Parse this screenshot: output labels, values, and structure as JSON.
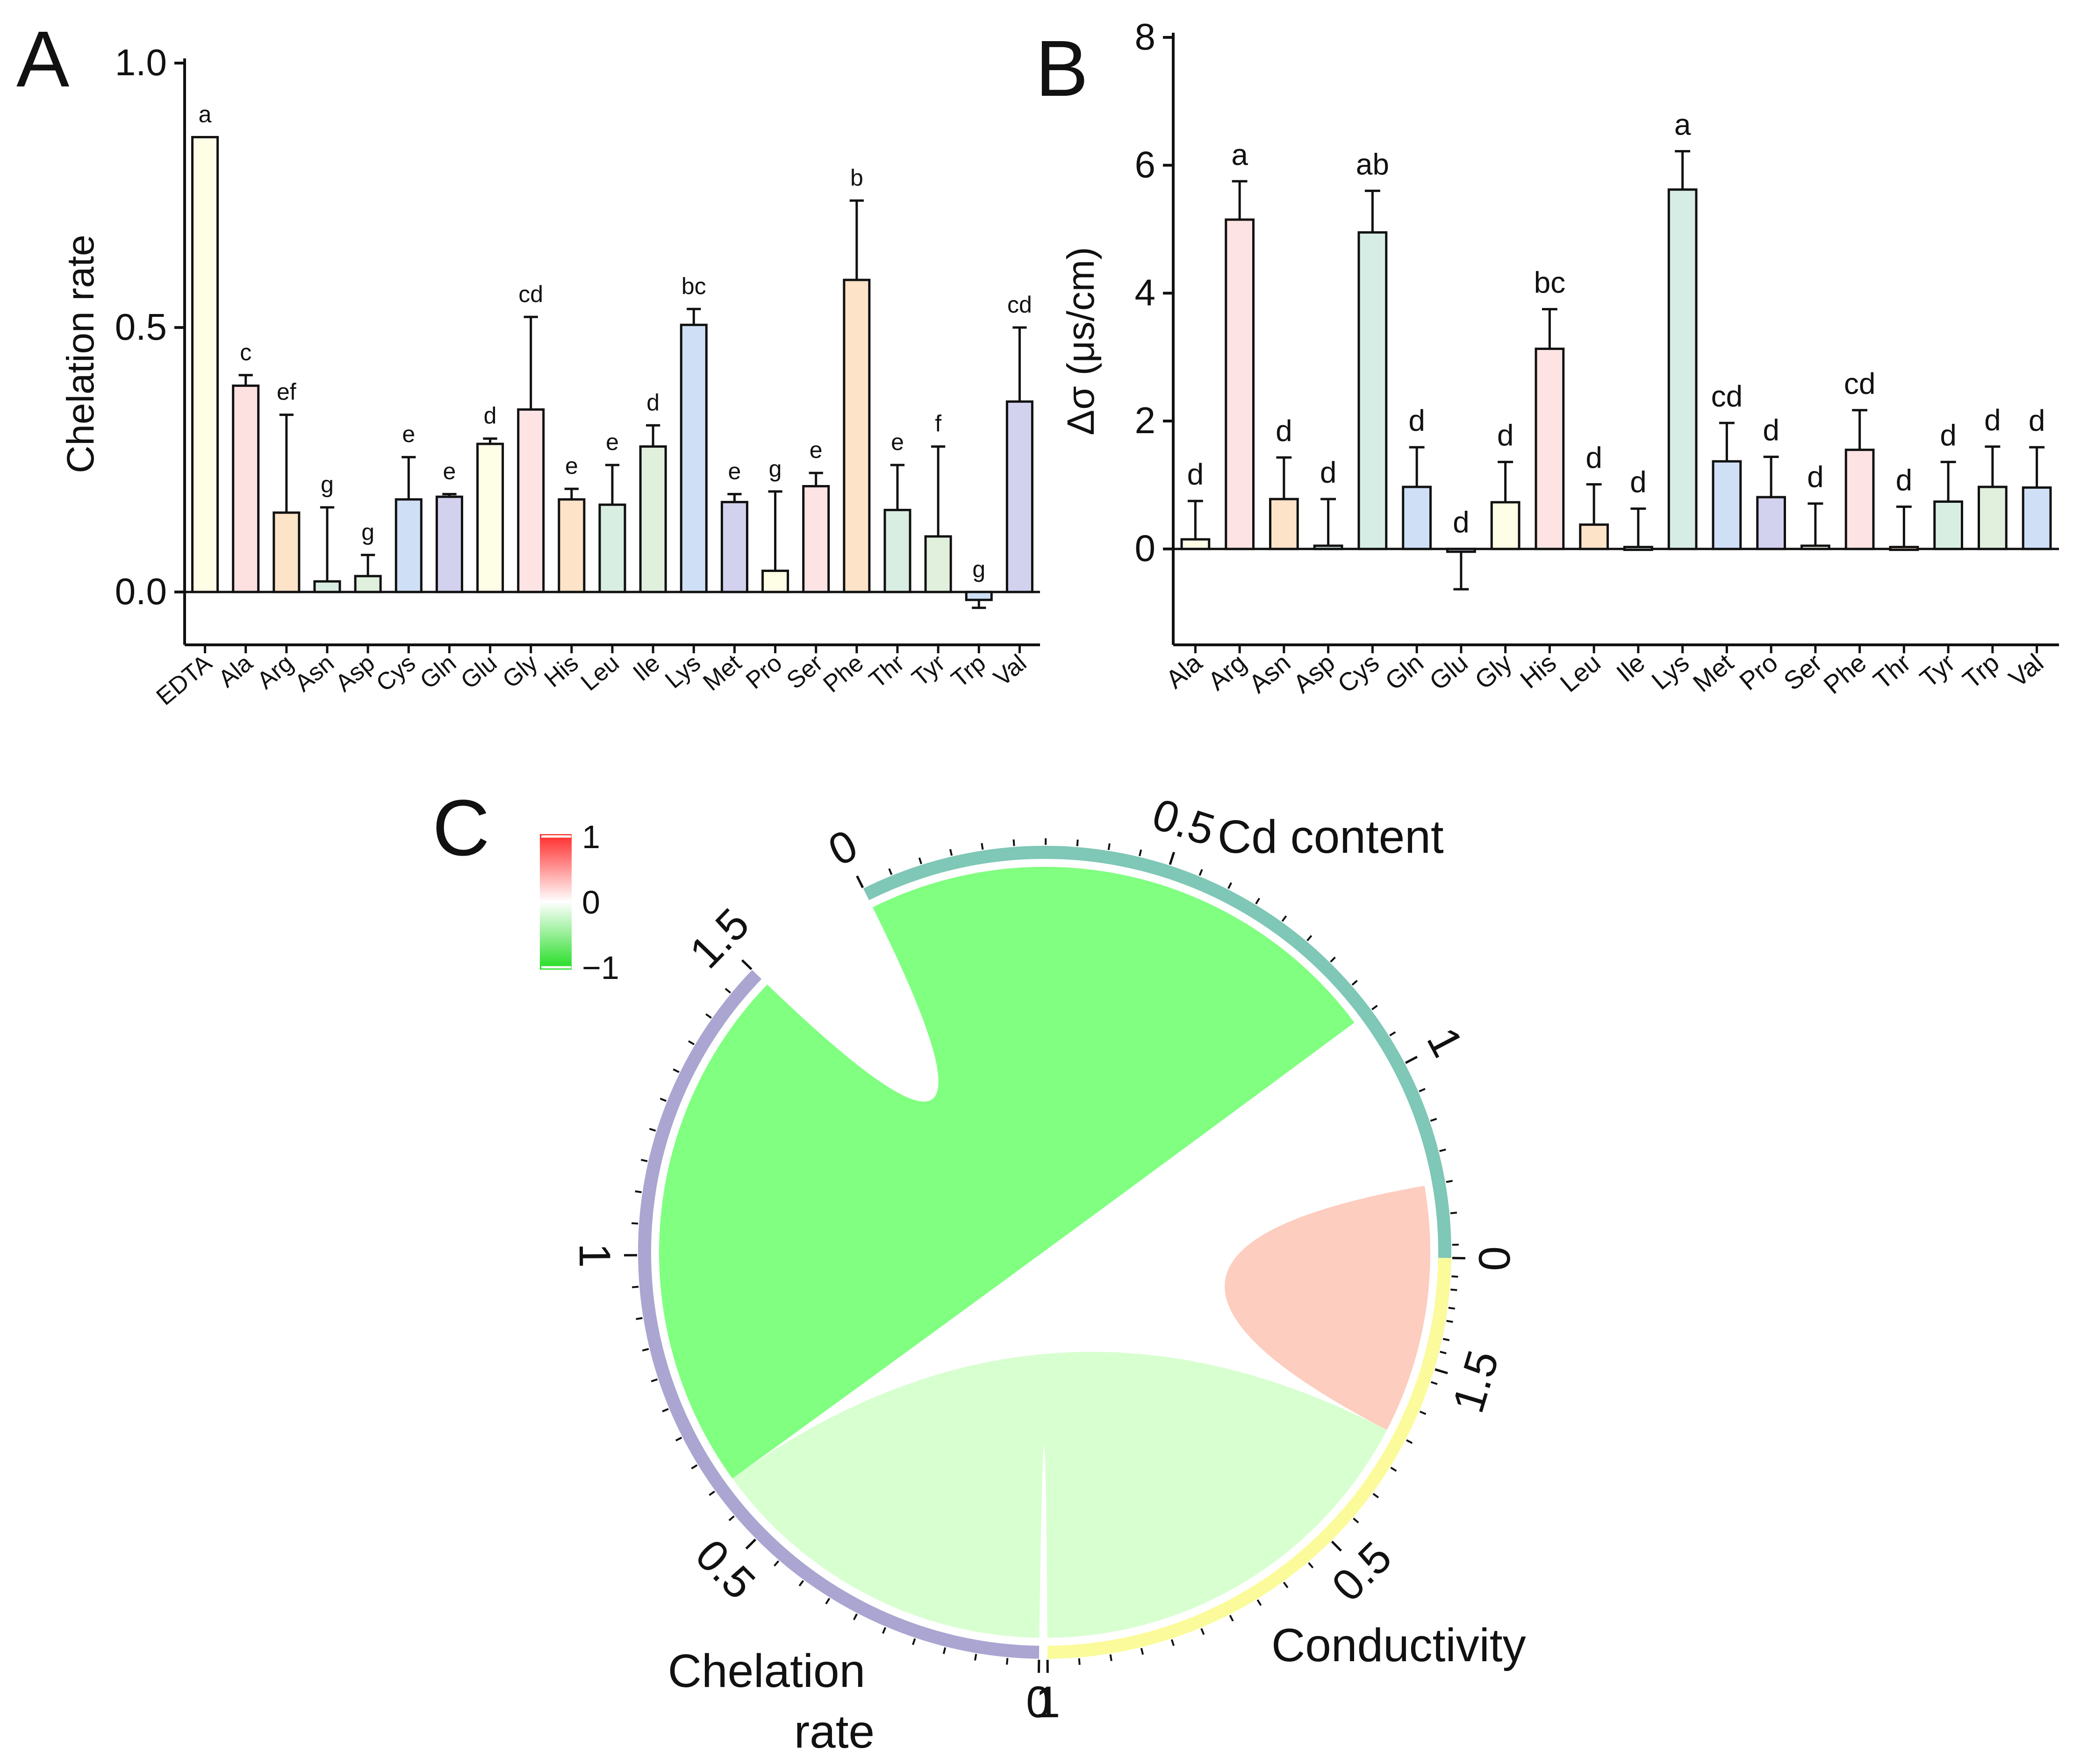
{
  "panels": {
    "a_label": "A",
    "b_label": "B",
    "c_label": "C"
  },
  "chart_data": [
    {
      "id": "A",
      "type": "bar",
      "ylabel": "Chelation rate",
      "xlabel": "",
      "ylim": [
        -0.1,
        1.0
      ],
      "yticks": [
        0.0,
        0.5,
        1.0
      ],
      "ytick_labels": [
        "0.0",
        "0.5",
        "1.0"
      ],
      "categories": [
        "EDTA",
        "Ala",
        "Arg",
        "Asn",
        "Asp",
        "Cys",
        "Gln",
        "Glu",
        "Gly",
        "His",
        "Leu",
        "Ile",
        "Lys",
        "Met",
        "Pro",
        "Ser",
        "Phe",
        "Thr",
        "Tyr",
        "Trp",
        "Val"
      ],
      "values": [
        0.86,
        0.39,
        0.15,
        0.02,
        0.03,
        0.175,
        0.18,
        0.28,
        0.345,
        0.175,
        0.165,
        0.275,
        0.505,
        0.17,
        0.04,
        0.2,
        0.59,
        0.155,
        0.105,
        -0.015,
        0.36
      ],
      "errors": [
        0.0,
        0.02,
        0.185,
        0.14,
        0.04,
        0.08,
        0.005,
        0.01,
        0.175,
        0.02,
        0.075,
        0.04,
        0.03,
        0.015,
        0.15,
        0.025,
        0.15,
        0.085,
        0.17,
        0.015,
        0.14
      ],
      "letters": [
        "a",
        "c",
        "ef",
        "g",
        "g",
        "e",
        "e",
        "d",
        "cd",
        "e",
        "e",
        "d",
        "bc",
        "e",
        "g",
        "e",
        "b",
        "e",
        "f",
        "g",
        "cd"
      ],
      "colors": [
        "#fefde6",
        "#fde0e0",
        "#fde3c8",
        "#d9eee2",
        "#e1f0dd",
        "#cfe0f6",
        "#d2d1ee",
        "#fefde6",
        "#fde3e3",
        "#fde3c8",
        "#d9eee2",
        "#e1f0dd",
        "#cfe0f6",
        "#d2d1ee",
        "#fefde6",
        "#fde3e3",
        "#fde3c8",
        "#d9eee2",
        "#e1f0dd",
        "#cfe0f6",
        "#d2d1ee"
      ]
    },
    {
      "id": "B",
      "type": "bar",
      "ylabel": "Δσ (μs/cm)",
      "xlabel": "",
      "ylim": [
        -1.5,
        8
      ],
      "yticks": [
        0,
        2,
        4,
        6,
        8
      ],
      "ytick_labels": [
        "0",
        "2",
        "4",
        "6",
        "8"
      ],
      "categories": [
        "Ala",
        "Arg",
        "Asn",
        "Asp",
        "Cys",
        "Gln",
        "Glu",
        "Gly",
        "His",
        "Leu",
        "Ile",
        "Lys",
        "Met",
        "Pro",
        "Ser",
        "Phe",
        "Thr",
        "Tyr",
        "Trp",
        "Val"
      ],
      "values": [
        0.15,
        5.15,
        0.78,
        0.05,
        4.95,
        0.97,
        -0.03,
        0.73,
        3.13,
        0.38,
        0.03,
        5.62,
        1.37,
        0.81,
        0.05,
        1.55,
        0.03,
        0.74,
        0.97,
        0.96
      ],
      "errors": [
        0.6,
        0.6,
        0.65,
        0.73,
        0.65,
        0.62,
        0.6,
        0.63,
        0.62,
        0.63,
        0.6,
        0.6,
        0.6,
        0.63,
        0.66,
        0.62,
        0.63,
        0.62,
        0.63,
        0.63
      ],
      "letters": [
        "d",
        "a",
        "d",
        "d",
        "ab",
        "d",
        "d",
        "d",
        "bc",
        "d",
        "d",
        "a",
        "cd",
        "d",
        "d",
        "cd",
        "d",
        "d",
        "d",
        "d"
      ],
      "colors": [
        "#fefde6",
        "#fde3e3",
        "#fde3c8",
        "#d9eee2",
        "#d6ede5",
        "#cfe0f6",
        "#d2d1ee",
        "#fefde6",
        "#fde3e3",
        "#fde3c8",
        "#d9eee2",
        "#d6ede5",
        "#cfe0f6",
        "#d2d1ee",
        "#fefde6",
        "#fde3e3",
        "#fde3c8",
        "#d9eee2",
        "#e1f0dd",
        "#cfe0f6"
      ]
    },
    {
      "id": "C",
      "type": "chord",
      "sectors": [
        {
          "name": "Cd content",
          "length": 1.5,
          "color": "#7fc7b6",
          "tick_labels": [
            "0",
            "0.5",
            "1",
            "1.5"
          ]
        },
        {
          "name": "Conductivity",
          "length": 1.0,
          "color": "#fbfb9b",
          "tick_labels": [
            "0",
            "0.5",
            "1"
          ]
        },
        {
          "name": "Chelation rate",
          "length": 1.5,
          "color": "#aaa6d1",
          "tick_labels": [
            "0",
            "0.5",
            "1",
            "1.5"
          ]
        }
      ],
      "links": [
        {
          "from": "Cd content",
          "to": "Chelation rate",
          "value": -0.9,
          "color": "#80ff80"
        },
        {
          "from": "Cd content",
          "to": "Conductivity",
          "value": 0.3,
          "color": "#fdcdbf"
        },
        {
          "from": "Conductivity",
          "to": "Chelation rate",
          "value": -0.2,
          "color": "#d8ffd0"
        }
      ],
      "legend": {
        "max_label": "1",
        "mid_label": "0",
        "min_label": "−1",
        "colors": [
          "#ff2a2a",
          "#ffffff",
          "#22dd22"
        ]
      }
    }
  ]
}
